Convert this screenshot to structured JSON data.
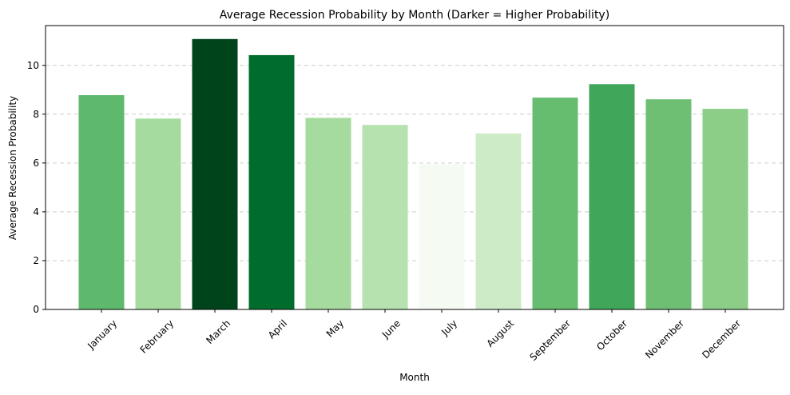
{
  "chart_data": {
    "type": "bar",
    "title": "Average Recession Probability by Month (Darker = Higher Probability)",
    "xlabel": "Month",
    "ylabel": "Average Recession Probability",
    "categories": [
      "January",
      "February",
      "March",
      "April",
      "May",
      "June",
      "July",
      "August",
      "September",
      "October",
      "November",
      "December"
    ],
    "values": [
      8.78,
      7.82,
      11.08,
      10.42,
      7.85,
      7.56,
      5.95,
      7.21,
      8.68,
      9.23,
      8.61,
      8.22
    ],
    "colors": [
      "#5fb96c",
      "#a6dba0",
      "#00441b",
      "#006d2c",
      "#a6dba0",
      "#b6e2b0",
      "#f5fbf3",
      "#ccebc6",
      "#67bd6f",
      "#3fa65a",
      "#6ebf73",
      "#8ccd88"
    ],
    "ylim": [
      0,
      11.63
    ],
    "yticks": [
      0,
      2,
      4,
      6,
      8,
      10
    ],
    "grid": "y-dashed",
    "legend": "none"
  }
}
